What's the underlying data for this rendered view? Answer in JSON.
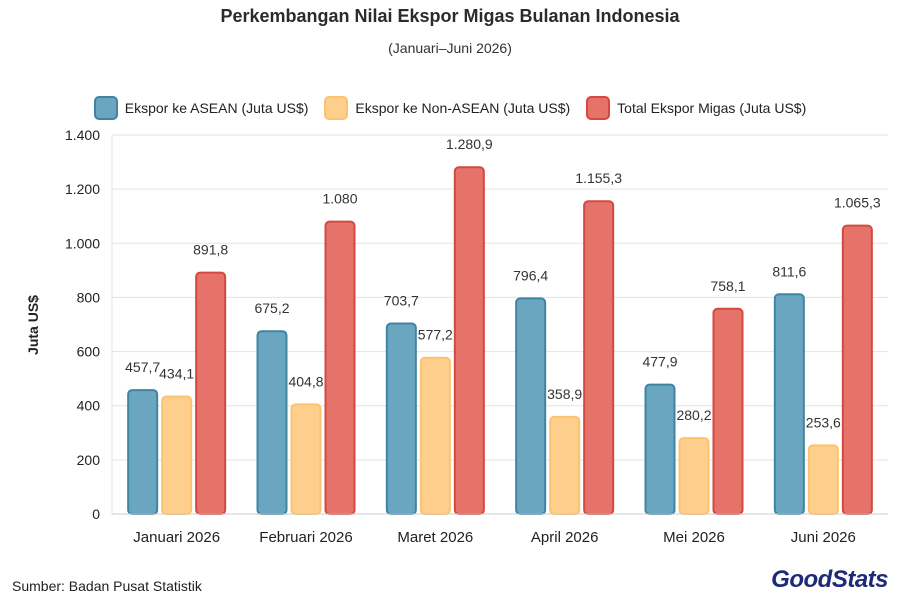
{
  "chart_data": {
    "type": "bar",
    "title": "Perkembangan Nilai Ekspor Migas Bulanan Indonesia",
    "subtitle": "(Januari–Juni 2026)",
    "xlabel": "",
    "ylabel": "Juta US$",
    "ylim": [
      0,
      1400
    ],
    "yticks": [
      0,
      200,
      400,
      600,
      800,
      1000,
      1200,
      1400
    ],
    "ytick_labels": [
      "0",
      "200",
      "400",
      "600",
      "800",
      "1.000",
      "1.200",
      "1.400"
    ],
    "grid": true,
    "legend_position": "top",
    "categories": [
      "Januari 2026",
      "Februari 2026",
      "Maret 2026",
      "April 2026",
      "Mei 2026",
      "Juni 2026"
    ],
    "series": [
      {
        "name": "Ekspor ke ASEAN (Juta US$)",
        "color": "#6aa6c0",
        "stroke": "#3f84a3",
        "values": [
          457.7,
          675.2,
          703.7,
          796.4,
          477.9,
          811.6
        ],
        "labels": [
          "457,7",
          "675,2",
          "703,7",
          "796,4",
          "477,9",
          "811,6"
        ]
      },
      {
        "name": "Ekspor ke Non-ASEAN (Juta US$)",
        "color": "#fecf8c",
        "stroke": "#fbc36f",
        "values": [
          434.1,
          404.8,
          577.2,
          358.9,
          280.2,
          253.6
        ],
        "labels": [
          "434,1",
          "404,8",
          "577,2",
          "358,9",
          "280,2",
          "253,6"
        ]
      },
      {
        "name": "Total Ekspor Migas (Juta US$)",
        "color": "#e6736a",
        "stroke": "#d4483f",
        "values": [
          891.8,
          1080,
          1280.9,
          1155.3,
          758.1,
          1065.3
        ],
        "labels": [
          "891,8",
          "1.080",
          "1.280,9",
          "1.155,3",
          "758,1",
          "1.065,3"
        ]
      }
    ]
  },
  "footer": {
    "source": "Sumber: Badan Pusat Statistik",
    "brand_part1": "Good",
    "brand_part2": "Stats"
  }
}
